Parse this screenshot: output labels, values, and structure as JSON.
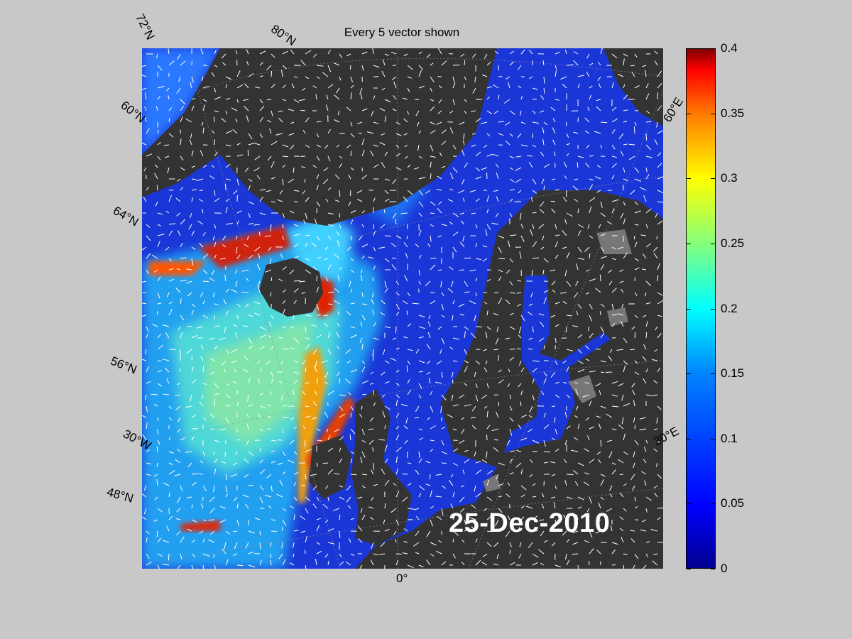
{
  "title": "Every 5 vector shown",
  "date": "25-Dec-2010",
  "lat_labels": [
    {
      "text": "72°N",
      "rot": 63
    },
    {
      "text": "80°N",
      "rot": 34
    },
    {
      "text": "60°N",
      "rot": 38
    },
    {
      "text": "64°N",
      "rot": 30
    },
    {
      "text": "56°N",
      "rot": 22
    },
    {
      "text": "48°N",
      "rot": 16
    }
  ],
  "lon_labels": [
    {
      "text": "30°W",
      "rot": 28
    },
    {
      "text": "0°",
      "rot": 0
    },
    {
      "text": "30°E",
      "rot": -28
    },
    {
      "text": "60°E",
      "rot": -58
    }
  ],
  "colorbar": {
    "ticks": [
      "0.4",
      "0.35",
      "0.3",
      "0.25",
      "0.2",
      "0.15",
      "0.1",
      "0.05",
      "0"
    ],
    "colors": [
      "#00008f",
      "#0000ff",
      "#0080ff",
      "#00ffff",
      "#80ff80",
      "#ffff00",
      "#ff8000",
      "#ff0000",
      "#800000"
    ]
  },
  "map_colors": {
    "land": "#333333",
    "ice": "#777777",
    "arrow": "#ffffff"
  }
}
